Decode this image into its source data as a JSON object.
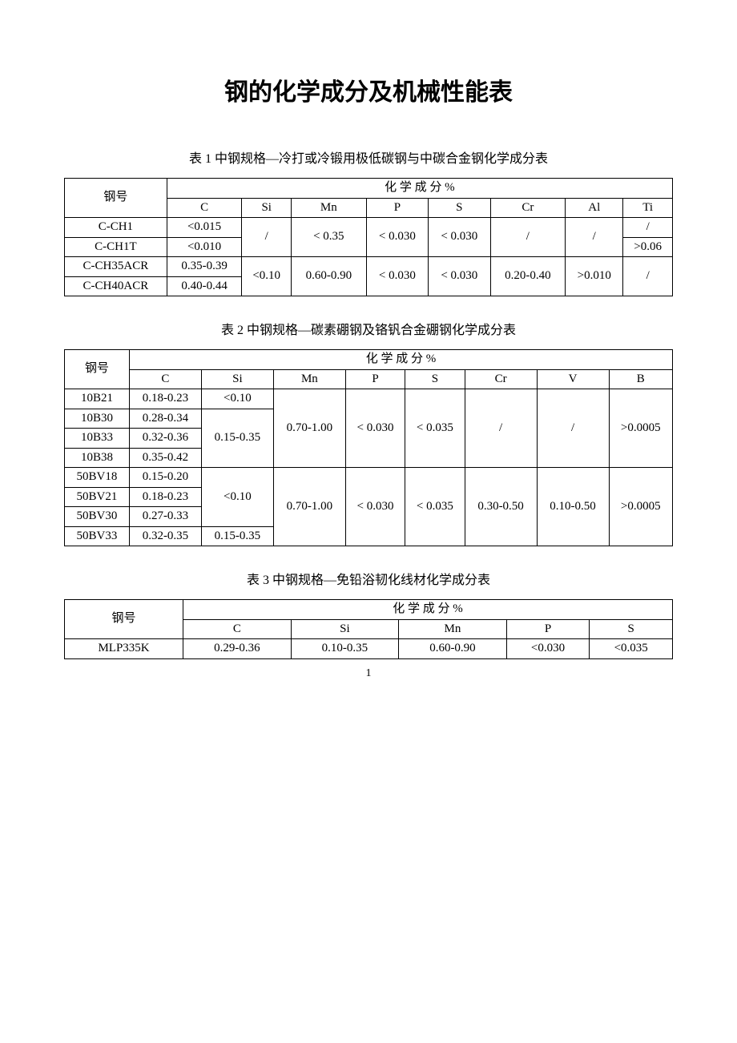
{
  "page_title": "钢的化学成分及机械性能表",
  "page_number": "1",
  "captions": {
    "t1": "表 1  中钢规格—冷打或冷锻用极低碳钢与中碳合金钢化学成分表",
    "t2": "表 2    中钢规格—碳素硼钢及铬钒合金硼钢化学成分表",
    "t3": "表 3    中钢规格—免铅浴韧化线材化学成分表"
  },
  "table1": {
    "head_merged": "化                           学                           成                        分  %",
    "row_label": "钢号",
    "cols": [
      "C",
      "Si",
      "Mn",
      "P",
      "S",
      "Cr",
      "Al",
      "Ti"
    ],
    "r1_name": "C-CH1",
    "r1_c": "<0.015",
    "g1_si": "/",
    "g1_mn": "< 0.35",
    "g1_p": "< 0.030",
    "g1_s": "< 0.030",
    "g1_cr": "/",
    "g1_al": "/",
    "r1_ti": "/",
    "r2_name": "C-CH1T",
    "r2_c": "<0.010",
    "r2_ti": ">0.06",
    "r3_name": "C-CH35ACR",
    "r3_c": "0.35-0.39",
    "g2_si": "<0.10",
    "g2_mn": "0.60-0.90",
    "g2_p": "< 0.030",
    "g2_s": "< 0.030",
    "g2_cr": "0.20-0.40",
    "g2_al": ">0.010",
    "g2_ti": "/",
    "r4_name": "C-CH40ACR",
    "r4_c": "0.40-0.44"
  },
  "table2": {
    "head_merged": "化                         学                         成                      分  %",
    "row_label": "钢号",
    "cols": [
      "C",
      "Si",
      "Mn",
      "P",
      "S",
      "Cr",
      "V",
      "B"
    ],
    "r1_name": "10B21",
    "r1_c": "0.18-0.23",
    "r1_si": "<0.10",
    "g1_mn": "0.70-1.00",
    "g1_p": "< 0.030",
    "g1_s": "< 0.035",
    "g1_cr": "/",
    "g1_v": "/",
    "g1_b": ">0.0005",
    "r2_name": "10B30",
    "r2_c": "0.28-0.34",
    "g2_si": "0.15-0.35",
    "r3_name": "10B33",
    "r3_c": "0.32-0.36",
    "r4_name": "10B38",
    "r4_c": "0.35-0.42",
    "r5_name": "50BV18",
    "r5_c": "0.15-0.20",
    "g3_si": "<0.10",
    "g3_mn": "0.70-1.00",
    "g3_p": "< 0.030",
    "g3_s": "< 0.035",
    "g3_cr": "0.30-0.50",
    "g3_v": "0.10-0.50",
    "g3_b": ">0.0005",
    "r6_name": "50BV21",
    "r6_c": "0.18-0.23",
    "r7_name": "50BV30",
    "r7_c": "0.27-0.33",
    "r8_name": "50BV33",
    "r8_c": "0.32-0.35",
    "r8_si": "0.15-0.35"
  },
  "table3": {
    "head_merged": "化                         学                         成                      分  %",
    "row_label": "钢号",
    "cols": [
      "C",
      "Si",
      "Mn",
      "P",
      "S"
    ],
    "r1_name": "MLP335K",
    "r1_c": "0.29-0.36",
    "r1_si": "0.10-0.35",
    "r1_mn": "0.60-0.90",
    "r1_p": "<0.030",
    "r1_s": "<0.035"
  },
  "colors": {
    "text": "#000000",
    "background": "#ffffff",
    "border": "#000000"
  },
  "typography": {
    "title_fontsize_pt": 22,
    "body_fontsize_pt": 11,
    "font_family": "Times New Roman / SimSun"
  }
}
